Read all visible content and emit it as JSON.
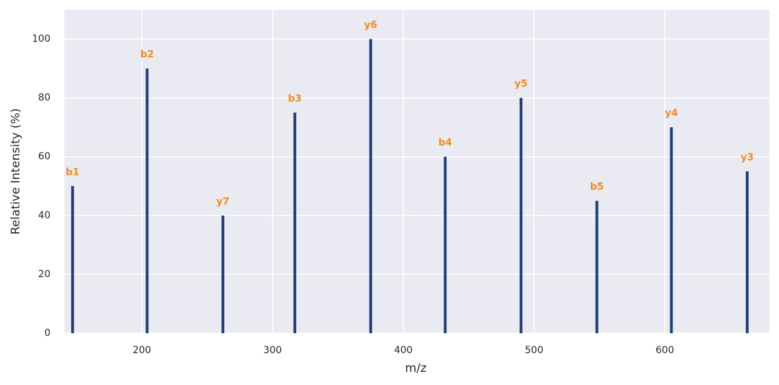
{
  "chart_data": {
    "type": "stem",
    "x": [
      147,
      204,
      262,
      317,
      375,
      432,
      490,
      548,
      605,
      663
    ],
    "values": [
      50,
      90,
      40,
      75,
      100,
      60,
      80,
      45,
      70,
      55
    ],
    "labels": [
      "b1",
      "b2",
      "y7",
      "b3",
      "y6",
      "b4",
      "y5",
      "b5",
      "y4",
      "y3"
    ],
    "color": "#1f3d7a",
    "label_color": "#f28a1e",
    "xlabel": "m/z",
    "ylabel": "Relative Intensity (%)",
    "xlim": [
      140.7,
      679.9
    ],
    "ylim": [
      0,
      110
    ],
    "xticks": [
      200,
      300,
      400,
      500,
      600
    ],
    "yticks": [
      0,
      20,
      40,
      60,
      80,
      100
    ],
    "grid": true
  }
}
